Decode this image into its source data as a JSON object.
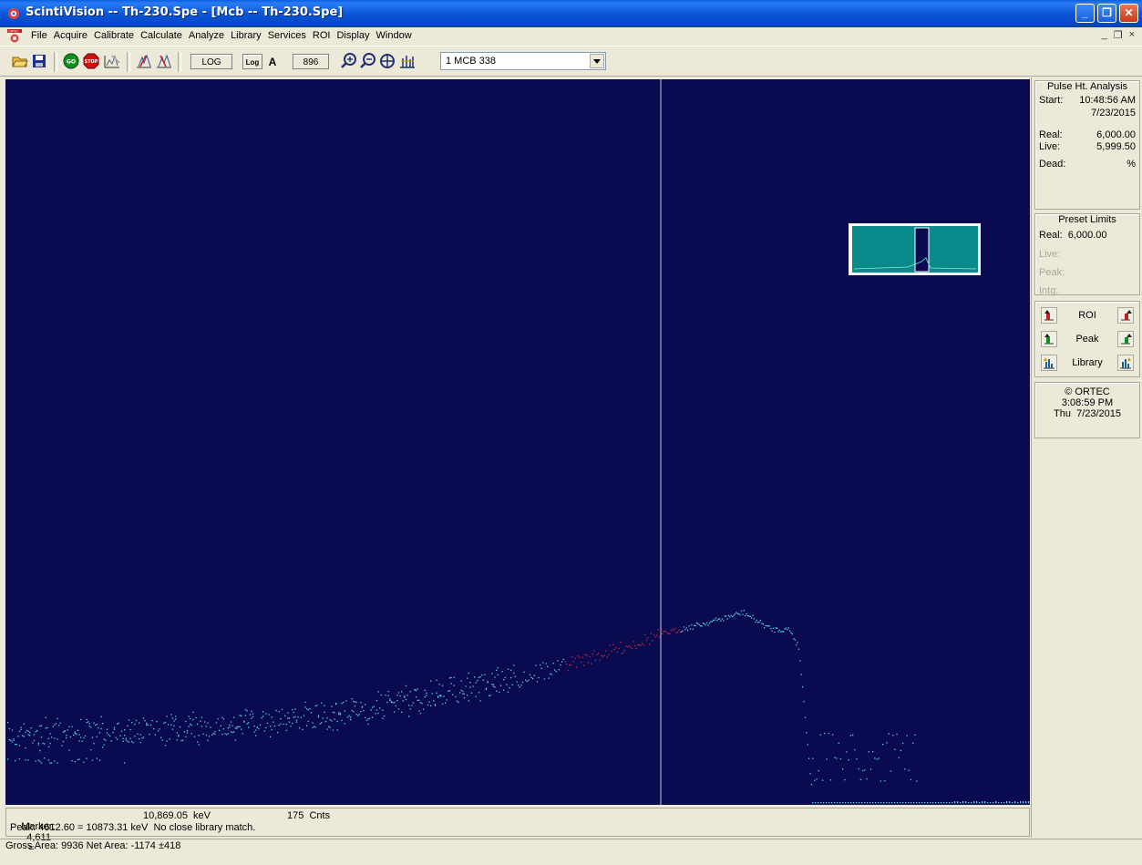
{
  "window": {
    "title": "ScintiVision -- Th-230.Spe - [Mcb -- Th-230.Spe]",
    "buttons": {
      "minimize": "_",
      "restore": "❐",
      "close": "✕"
    }
  },
  "menu": {
    "items": [
      "File",
      "Acquire",
      "Calibrate",
      "Calculate",
      "Analyze",
      "Library",
      "Services",
      "ROI",
      "Display",
      "Window"
    ],
    "mdi": {
      "minimize": "_",
      "restore": "❐",
      "close": "×"
    }
  },
  "toolbar": {
    "icons": [
      "open-folder-icon",
      "save-disk-icon",
      "go-icon",
      "stop-icon",
      "clear-spectrum-icon",
      "roi-mark-icon",
      "roi-unmark-icon",
      "log-lin-icon",
      "auto-scale-icon",
      "zoom-in-icon",
      "zoom-out-icon",
      "center-icon",
      "fine-zoom-icon"
    ],
    "go_label": "GO",
    "stop_label": "STOP",
    "log_label": "LOG",
    "log_small_label": "Log",
    "auto_label": "A",
    "vertical_scale_value": "896",
    "detector_selected": "1 MCB 338"
  },
  "side_panel": {
    "pha": {
      "title": "Pulse Ht. Analysis",
      "start_label": "Start:",
      "start_time": "10:48:56 AM",
      "start_date": "7/23/2015",
      "real_label": "Real:",
      "real_value": "6,000.00",
      "live_label": "Live:",
      "live_value": "5,999.50",
      "dead_label": "Dead:",
      "dead_value": "%"
    },
    "preset": {
      "title": "Preset Limits",
      "real_label": "Real:",
      "real_value": "6,000.00",
      "live_label": "Live:",
      "peak_label": "Peak:",
      "intg_label": "Intg:"
    },
    "nav": {
      "roi_label": "ROI",
      "peak_label": "Peak",
      "library_label": "Library"
    },
    "info": {
      "copyright": "© ORTEC",
      "time": "3:08:59 PM",
      "day": "Thu",
      "date": "7/23/2015"
    }
  },
  "status": {
    "marker_label": "Marker:",
    "marker_channel": "4,611",
    "marker_equals": "=",
    "marker_energy": "10,869.05  keV",
    "marker_counts": "175  Cnts",
    "peak_line": "Peak: 4612.60 = 10873.31 keV  No close library match.",
    "area_line": "Gross Area: 9936  Net Area: -1174 ±418"
  },
  "colors": {
    "spectrum_bg": "#0a0a50",
    "spectrum_points": "#5fd0e0",
    "roi_points": "#c03030",
    "marker_line": "#c8c8d8",
    "overview_bg": "#0a8a8a"
  }
}
